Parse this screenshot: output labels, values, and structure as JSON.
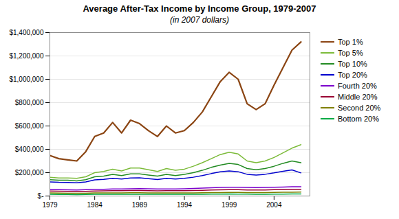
{
  "chart_data": {
    "type": "line",
    "title": "Average After-Tax Income by Income Group, 1979-2007",
    "subtitle": "(in 2007 dollars)",
    "x": [
      1979,
      1980,
      1981,
      1982,
      1983,
      1984,
      1985,
      1986,
      1987,
      1988,
      1989,
      1990,
      1991,
      1992,
      1993,
      1994,
      1995,
      1996,
      1997,
      1998,
      1999,
      2000,
      2001,
      2002,
      2003,
      2004,
      2005,
      2006,
      2007
    ],
    "series": [
      {
        "name": "Top 1%",
        "color": "#8B4513",
        "values": [
          347000,
          320000,
          310000,
          300000,
          380000,
          510000,
          540000,
          630000,
          540000,
          650000,
          620000,
          560000,
          510000,
          600000,
          540000,
          560000,
          630000,
          720000,
          850000,
          980000,
          1060000,
          1000000,
          790000,
          740000,
          790000,
          950000,
          1100000,
          1250000,
          1320000
        ]
      },
      {
        "name": "Top 5%",
        "color": "#7CBB3A",
        "values": [
          160000,
          155000,
          155000,
          152000,
          165000,
          200000,
          210000,
          230000,
          215000,
          240000,
          240000,
          225000,
          210000,
          235000,
          220000,
          230000,
          255000,
          285000,
          320000,
          355000,
          375000,
          360000,
          300000,
          285000,
          300000,
          330000,
          370000,
          410000,
          440000
        ]
      },
      {
        "name": "Top 10%",
        "color": "#228B22",
        "values": [
          140000,
          135000,
          135000,
          130000,
          140000,
          165000,
          170000,
          185000,
          175000,
          190000,
          190000,
          180000,
          170000,
          185000,
          175000,
          185000,
          200000,
          220000,
          245000,
          265000,
          280000,
          270000,
          235000,
          225000,
          235000,
          255000,
          280000,
          300000,
          285000
        ]
      },
      {
        "name": "Top 20%",
        "color": "#0000CD",
        "values": [
          120000,
          117000,
          116000,
          113000,
          120000,
          138000,
          142000,
          152000,
          145000,
          155000,
          156000,
          149000,
          141000,
          151000,
          145000,
          151000,
          161000,
          175000,
          192000,
          207000,
          214000,
          208000,
          186000,
          179000,
          186000,
          198000,
          212000,
          224000,
          198000
        ]
      },
      {
        "name": "Fourth 20%",
        "color": "#7B00CC",
        "values": [
          55000,
          54000,
          53000,
          52000,
          54000,
          57000,
          58000,
          60000,
          60000,
          62000,
          63000,
          62000,
          60000,
          61000,
          61000,
          62000,
          64000,
          67000,
          70000,
          73000,
          75000,
          75000,
          73000,
          72000,
          73000,
          75000,
          77000,
          79000,
          80000
        ]
      },
      {
        "name": "Middle 20%",
        "color": "#990033",
        "values": [
          42000,
          41000,
          40000,
          39000,
          40000,
          43000,
          44000,
          45000,
          45000,
          47000,
          47000,
          46000,
          44000,
          45000,
          45000,
          46000,
          47000,
          49000,
          51000,
          53000,
          54000,
          54000,
          52000,
          52000,
          52000,
          54000,
          55000,
          57000,
          58000
        ]
      },
      {
        "name": "Second 20%",
        "color": "#808000",
        "values": [
          26000,
          25000,
          24000,
          23000,
          24000,
          26000,
          26000,
          27000,
          27000,
          28000,
          28000,
          27000,
          26000,
          26000,
          26000,
          27000,
          27000,
          28000,
          29000,
          30000,
          31000,
          31000,
          30000,
          30000,
          30000,
          31000,
          32000,
          33000,
          34000
        ]
      },
      {
        "name": "Bottom 20%",
        "color": "#00AA44",
        "values": [
          14000,
          13000,
          13000,
          12000,
          13000,
          14000,
          14000,
          15000,
          15000,
          15000,
          15000,
          15000,
          14000,
          14000,
          14000,
          14000,
          15000,
          15000,
          16000,
          16000,
          17000,
          16000,
          16000,
          15000,
          15000,
          16000,
          16000,
          17000,
          17000
        ]
      }
    ],
    "xlim": [
      1979,
      2008
    ],
    "xticks": [
      1979,
      1984,
      1989,
      1994,
      1999,
      2004
    ],
    "ylim": [
      0,
      1400000
    ],
    "yticks": [
      {
        "value": 0,
        "label": "$-"
      },
      {
        "value": 200000,
        "label": "$200,000"
      },
      {
        "value": 400000,
        "label": "$400,000"
      },
      {
        "value": 600000,
        "label": "$600,000"
      },
      {
        "value": 800000,
        "label": "$800,000"
      },
      {
        "value": 1000000,
        "label": "$1,000,000"
      },
      {
        "value": 1200000,
        "label": "$1,200,000"
      },
      {
        "value": 1400000,
        "label": "$1,400,000"
      }
    ],
    "grid": true,
    "legend": "right"
  }
}
